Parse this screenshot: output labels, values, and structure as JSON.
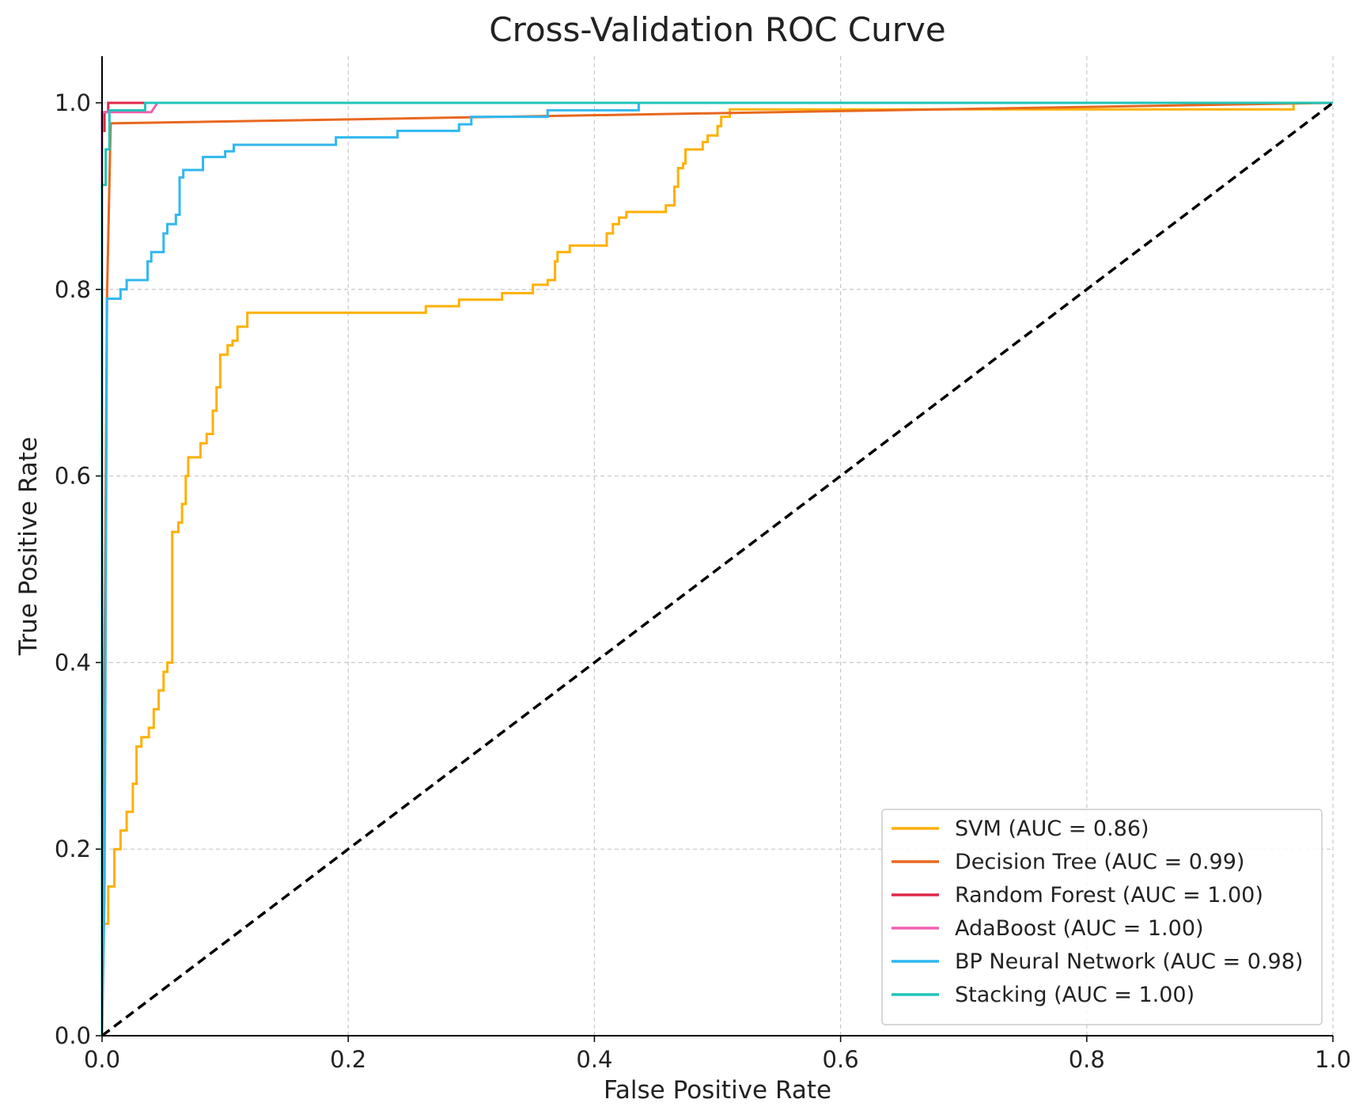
{
  "chart_data": {
    "type": "line",
    "title": "Cross-Validation ROC Curve",
    "x_label": "False Positive Rate",
    "y_label": "True Positive Rate",
    "xlim": [
      0,
      1
    ],
    "ylim": [
      0,
      1.05
    ],
    "xticks": [
      {
        "value": 0,
        "label": "0.0"
      },
      0.2,
      0.4,
      0.6,
      0.8,
      {
        "value": 1,
        "label": "1.0"
      }
    ],
    "yticks": [
      {
        "value": 0,
        "label": "0.0"
      },
      0.2,
      0.4,
      0.6,
      0.8,
      {
        "value": 1,
        "label": "1.0"
      }
    ],
    "grid": true,
    "legend": "lower right",
    "reference_line": {
      "x": [
        0,
        1
      ],
      "y": [
        0,
        1
      ],
      "color": "#000000"
    },
    "series": [
      {
        "name": "SVM (AUC = 0.86)",
        "color": "#ffb000",
        "x": [
          0,
          0,
          0.005,
          0.005,
          0.01,
          0.01,
          0.015,
          0.015,
          0.02,
          0.02,
          0.025,
          0.025,
          0.028,
          0.028,
          0.032,
          0.032,
          0.038,
          0.038,
          0.042,
          0.042,
          0.046,
          0.046,
          0.05,
          0.05,
          0.053,
          0.053,
          0.057,
          0.057,
          0.062,
          0.062,
          0.065,
          0.065,
          0.068,
          0.068,
          0.07,
          0.07,
          0.08,
          0.08,
          0.085,
          0.085,
          0.09,
          0.09,
          0.093,
          0.093,
          0.096,
          0.096,
          0.102,
          0.102,
          0.106,
          0.106,
          0.11,
          0.11,
          0.118,
          0.118,
          0.263,
          0.263,
          0.29,
          0.29,
          0.325,
          0.325,
          0.35,
          0.35,
          0.362,
          0.362,
          0.368,
          0.368,
          0.37,
          0.37,
          0.38,
          0.38,
          0.41,
          0.41,
          0.415,
          0.415,
          0.42,
          0.42,
          0.426,
          0.426,
          0.458,
          0.458,
          0.465,
          0.465,
          0.468,
          0.468,
          0.472,
          0.472,
          0.474,
          0.474,
          0.488,
          0.488,
          0.492,
          0.492,
          0.5,
          0.5,
          0.503,
          0.503,
          0.51,
          0.51,
          0.968,
          0.968,
          1
        ],
        "y": [
          0,
          0.12,
          0.12,
          0.16,
          0.16,
          0.2,
          0.2,
          0.22,
          0.22,
          0.24,
          0.24,
          0.27,
          0.27,
          0.31,
          0.31,
          0.32,
          0.32,
          0.33,
          0.33,
          0.35,
          0.35,
          0.37,
          0.37,
          0.39,
          0.39,
          0.4,
          0.4,
          0.54,
          0.54,
          0.55,
          0.55,
          0.57,
          0.57,
          0.6,
          0.6,
          0.62,
          0.62,
          0.635,
          0.635,
          0.645,
          0.645,
          0.67,
          0.67,
          0.695,
          0.695,
          0.73,
          0.73,
          0.74,
          0.74,
          0.745,
          0.745,
          0.76,
          0.76,
          0.775,
          0.775,
          0.782,
          0.782,
          0.789,
          0.789,
          0.796,
          0.796,
          0.805,
          0.805,
          0.81,
          0.81,
          0.83,
          0.83,
          0.84,
          0.84,
          0.847,
          0.847,
          0.86,
          0.86,
          0.87,
          0.87,
          0.877,
          0.877,
          0.883,
          0.883,
          0.89,
          0.89,
          0.91,
          0.91,
          0.93,
          0.93,
          0.935,
          0.935,
          0.95,
          0.95,
          0.958,
          0.958,
          0.965,
          0.965,
          0.975,
          0.975,
          0.985,
          0.985,
          0.993,
          0.993,
          1,
          1
        ]
      },
      {
        "name": "Decision Tree (AUC = 0.99)",
        "color": "#e8681f",
        "x": [
          0,
          0.004,
          0.007,
          1
        ],
        "y": [
          0,
          0.79,
          0.978,
          1
        ]
      },
      {
        "name": "Random Forest (AUC = 1.00)",
        "color": "#e0284a",
        "x": [
          0,
          0,
          0.002,
          0.002,
          0.005,
          0.005,
          1
        ],
        "y": [
          0,
          0.97,
          0.97,
          0.99,
          0.99,
          1,
          1
        ]
      },
      {
        "name": "AdaBoost (AUC = 1.00)",
        "color": "#f060b0",
        "x": [
          0,
          0,
          0.04,
          0.045,
          1
        ],
        "y": [
          0,
          0.99,
          0.99,
          1,
          1
        ]
      },
      {
        "name": "BP Neural Network (AUC = 0.98)",
        "color": "#30b8f0",
        "x": [
          0,
          0.002,
          0.004,
          0.015,
          0.015,
          0.02,
          0.02,
          0.037,
          0.037,
          0.04,
          0.04,
          0.05,
          0.05,
          0.053,
          0.053,
          0.06,
          0.06,
          0.063,
          0.063,
          0.066,
          0.066,
          0.082,
          0.082,
          0.1,
          0.1,
          0.107,
          0.107,
          0.19,
          0.19,
          0.24,
          0.24,
          0.29,
          0.29,
          0.3,
          0.3,
          0.362,
          0.362,
          0.436,
          0.436,
          1
        ],
        "y": [
          0,
          0.15,
          0.79,
          0.79,
          0.8,
          0.8,
          0.81,
          0.81,
          0.83,
          0.83,
          0.84,
          0.84,
          0.86,
          0.86,
          0.87,
          0.87,
          0.88,
          0.88,
          0.92,
          0.92,
          0.928,
          0.928,
          0.942,
          0.942,
          0.948,
          0.948,
          0.955,
          0.955,
          0.963,
          0.963,
          0.97,
          0.97,
          0.977,
          0.977,
          0.985,
          0.985,
          0.992,
          0.992,
          1,
          1
        ]
      },
      {
        "name": "Stacking (AUC = 1.00)",
        "color": "#20c4b8",
        "x": [
          0,
          0,
          0.003,
          0.003,
          0.006,
          0.006,
          0.035,
          0.035,
          1
        ],
        "y": [
          0,
          0.912,
          0.912,
          0.95,
          0.95,
          0.992,
          0.992,
          1,
          1
        ]
      }
    ]
  }
}
